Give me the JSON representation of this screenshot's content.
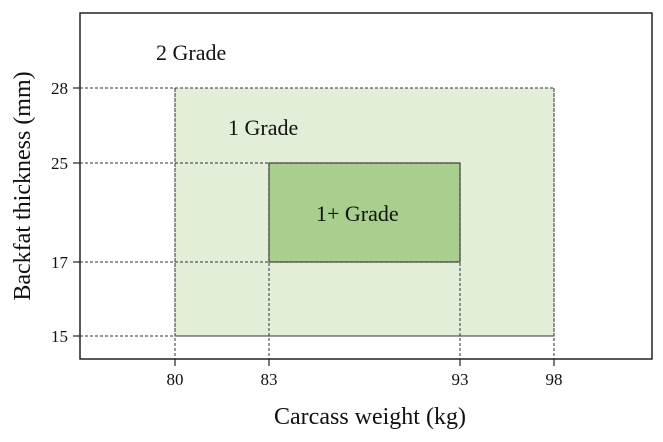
{
  "chart_data": {
    "type": "region-diagram",
    "xlabel": "Carcass weight (kg)",
    "ylabel": "Backfat thickness (mm)",
    "x_ticks": [
      80,
      83,
      93,
      98
    ],
    "y_ticks": [
      15,
      17,
      25,
      28
    ],
    "grid": "dashed guide lines at tick values",
    "regions": [
      {
        "label": "2 Grade",
        "note": "outside the 1 Grade rectangle",
        "fill": "#ffffff"
      },
      {
        "label": "1 Grade",
        "x_range": [
          80,
          98
        ],
        "y_range": [
          15,
          28
        ],
        "fill": "#e3eed8"
      },
      {
        "label": "1+ Grade",
        "x_range": [
          83,
          93
        ],
        "y_range": [
          17,
          25
        ],
        "fill": "#a8cf8e"
      }
    ]
  }
}
